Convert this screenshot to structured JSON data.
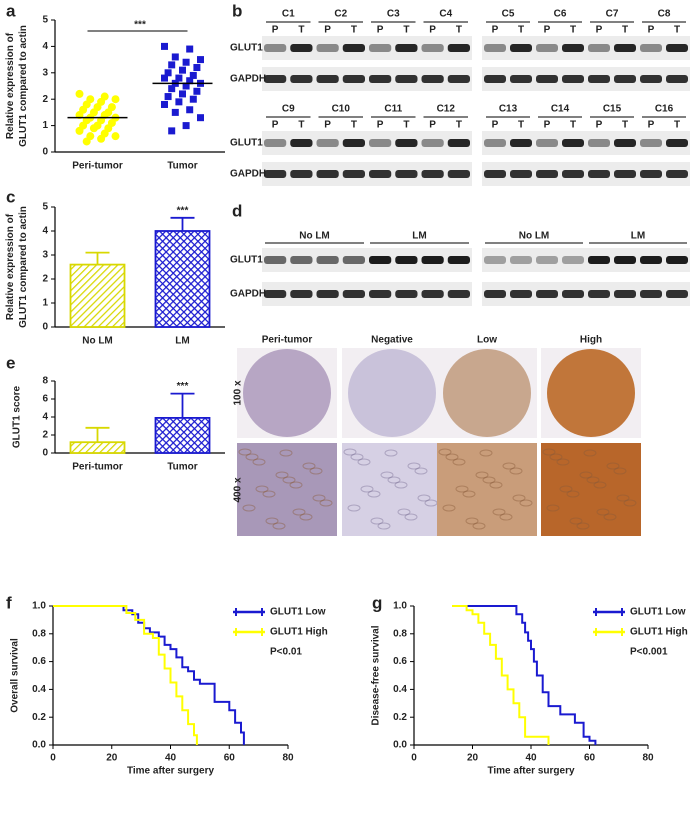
{
  "chart_data": [
    {
      "type": "dotplot",
      "panel": "a",
      "ylabel": [
        "Relative expression of",
        "GLUT1 compared to actin"
      ],
      "categories": [
        "Peri-tumor",
        "Tumor"
      ],
      "colors": [
        "#ffff00",
        "#1a1ad0"
      ],
      "markers": [
        "circle",
        "square"
      ],
      "values": [
        [
          2.2,
          2.1,
          2.0,
          2.0,
          1.9,
          1.8,
          1.7,
          1.7,
          1.6,
          1.5,
          1.5,
          1.4,
          1.4,
          1.3,
          1.3,
          1.2,
          1.2,
          1.1,
          1.0,
          1.0,
          0.9,
          0.9,
          0.8,
          0.7,
          0.6,
          0.6,
          0.5,
          0.4
        ],
        [
          4.0,
          3.9,
          3.6,
          3.5,
          3.4,
          3.3,
          3.2,
          3.1,
          3.0,
          2.9,
          2.8,
          2.8,
          2.7,
          2.6,
          2.6,
          2.5,
          2.4,
          2.3,
          2.2,
          2.1,
          2.0,
          1.9,
          1.8,
          1.6,
          1.5,
          1.3,
          1.0,
          0.8
        ]
      ],
      "means": [
        1.3,
        2.6
      ],
      "annotation": "***",
      "ylim": [
        0,
        5
      ],
      "yticks": [
        0,
        1,
        2,
        3,
        4,
        5
      ]
    },
    {
      "type": "bar",
      "panel": "c",
      "ylabel": [
        "Relative expression of",
        "GLUT1 compared to actin"
      ],
      "categories": [
        "No LM",
        "LM"
      ],
      "colors": [
        "#d8d800",
        "#1a1ad0"
      ],
      "values": [
        2.6,
        4.0
      ],
      "errors": [
        0.5,
        0.55
      ],
      "annotation": "***",
      "ylim": [
        0,
        5
      ],
      "yticks": [
        0,
        1,
        2,
        3,
        4,
        5
      ]
    },
    {
      "type": "bar",
      "panel": "e",
      "ylabel": [
        "GLUT1 score"
      ],
      "categories": [
        "Peri-tumor",
        "Tumor"
      ],
      "colors": [
        "#d8d800",
        "#1a1ad0"
      ],
      "values": [
        1.2,
        3.9
      ],
      "errors": [
        1.6,
        2.7
      ],
      "annotation": "***",
      "ylim": [
        0,
        8
      ],
      "yticks": [
        0,
        2,
        4,
        6,
        8
      ]
    },
    {
      "type": "line",
      "panel": "f",
      "ylabel": [
        "Overall survival"
      ],
      "xlabel": "Time after surgery",
      "annotation": "P<0.01",
      "xlim": [
        0,
        80
      ],
      "xticks": [
        0,
        20,
        40,
        60,
        80
      ],
      "ylim": [
        0,
        1
      ],
      "yticks": [
        {
          "value": 0,
          "label": "0.0"
        },
        {
          "value": 0.2,
          "label": "0.2"
        },
        {
          "value": 0.4,
          "label": "0.4"
        },
        {
          "value": 0.6,
          "label": "0.6"
        },
        {
          "value": 0.8,
          "label": "0.8"
        },
        {
          "value": 1,
          "label": "1.0"
        }
      ],
      "legend": "upper right",
      "series": [
        {
          "name": "GLUT1 Low",
          "color": "#1a1ad0",
          "x": [
            0,
            24,
            24,
            27,
            27,
            29,
            29,
            31,
            31,
            33,
            33,
            36,
            36,
            38,
            38,
            40,
            40,
            42,
            42,
            44,
            44,
            46,
            46,
            48,
            48,
            50,
            50,
            55,
            55,
            60,
            60,
            62,
            62,
            64,
            64,
            65,
            65
          ],
          "values": [
            1,
            1,
            0.97,
            0.97,
            0.94,
            0.94,
            0.88,
            0.88,
            0.84,
            0.84,
            0.81,
            0.81,
            0.78,
            0.78,
            0.72,
            0.72,
            0.69,
            0.69,
            0.63,
            0.63,
            0.56,
            0.56,
            0.53,
            0.53,
            0.47,
            0.47,
            0.44,
            0.44,
            0.31,
            0.31,
            0.25,
            0.25,
            0.16,
            0.16,
            0.09,
            0.09,
            0
          ]
        },
        {
          "name": "GLUT1 High",
          "color": "#ffff00",
          "x": [
            0,
            25,
            25,
            28,
            28,
            31,
            31,
            34,
            34,
            36,
            36,
            38,
            38,
            40,
            40,
            42,
            42,
            44,
            44,
            46,
            46,
            48,
            48,
            49,
            49
          ],
          "values": [
            1,
            1,
            0.95,
            0.95,
            0.9,
            0.9,
            0.8,
            0.8,
            0.77,
            0.77,
            0.65,
            0.65,
            0.55,
            0.55,
            0.45,
            0.45,
            0.35,
            0.35,
            0.25,
            0.25,
            0.15,
            0.15,
            0.07,
            0.07,
            0
          ]
        }
      ]
    },
    {
      "type": "line",
      "panel": "g",
      "ylabel": [
        "Disease-free survival"
      ],
      "xlabel": "Time after surgery",
      "annotation": "P<0.001",
      "xlim": [
        0,
        80
      ],
      "xticks": [
        0,
        20,
        40,
        60,
        80
      ],
      "ylim": [
        0,
        1
      ],
      "yticks": [
        {
          "value": 0,
          "label": "0.0"
        },
        {
          "value": 0.2,
          "label": "0.2"
        },
        {
          "value": 0.4,
          "label": "0.4"
        },
        {
          "value": 0.6,
          "label": "0.6"
        },
        {
          "value": 0.8,
          "label": "0.8"
        },
        {
          "value": 1,
          "label": "1.0"
        }
      ],
      "legend": "upper right",
      "series": [
        {
          "name": "GLUT1 Low",
          "color": "#1a1ad0",
          "x": [
            13,
            35,
            35,
            37,
            37,
            38,
            38,
            39,
            39,
            40,
            40,
            41,
            41,
            42,
            42,
            44,
            44,
            46,
            46,
            50,
            50,
            55,
            55,
            58,
            58,
            60,
            60,
            62,
            62
          ],
          "values": [
            1,
            1,
            0.94,
            0.94,
            0.88,
            0.88,
            0.81,
            0.81,
            0.75,
            0.75,
            0.69,
            0.69,
            0.6,
            0.6,
            0.5,
            0.5,
            0.38,
            0.38,
            0.28,
            0.28,
            0.22,
            0.22,
            0.16,
            0.16,
            0.06,
            0.06,
            0.03,
            0.03,
            0
          ]
        },
        {
          "name": "GLUT1 High",
          "color": "#ffff00",
          "x": [
            13,
            18,
            18,
            20,
            20,
            22,
            22,
            24,
            24,
            26,
            26,
            28,
            28,
            30,
            30,
            32,
            32,
            34,
            34,
            36,
            36,
            38,
            38,
            46,
            46
          ],
          "values": [
            1,
            1,
            0.97,
            0.97,
            0.94,
            0.94,
            0.88,
            0.88,
            0.8,
            0.8,
            0.72,
            0.72,
            0.62,
            0.62,
            0.5,
            0.5,
            0.4,
            0.4,
            0.3,
            0.3,
            0.2,
            0.2,
            0.06,
            0.06,
            0
          ]
        }
      ]
    }
  ],
  "blots": {
    "b": {
      "panel": "b",
      "pair": [
        "P",
        "T"
      ],
      "bands": [
        "GLUT1",
        "GAPDH"
      ],
      "rows": [
        [
          "C1",
          "C2",
          "C3",
          "C4",
          "C5",
          "C6",
          "C7",
          "C8"
        ],
        [
          "C9",
          "C10",
          "C11",
          "C12",
          "C13",
          "C14",
          "C15",
          "C16"
        ]
      ]
    },
    "d": {
      "panel": "d",
      "groups": [
        "No LM",
        "LM"
      ],
      "bands": [
        "GLUT1",
        "GAPDH"
      ]
    }
  },
  "ihc": {
    "columns": [
      "Peri-tumor",
      "Negative",
      "Low",
      "High"
    ],
    "rows": [
      "100 x",
      "400 x"
    ]
  }
}
